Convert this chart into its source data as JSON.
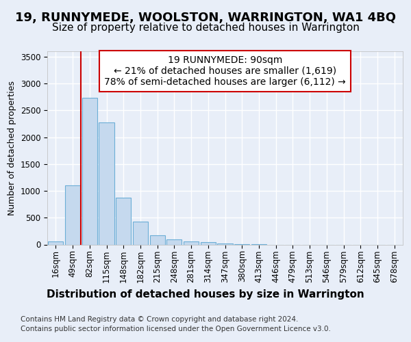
{
  "title": "19, RUNNYMEDE, WOOLSTON, WARRINGTON, WA1 4BQ",
  "subtitle": "Size of property relative to detached houses in Warrington",
  "xlabel": "Distribution of detached houses by size in Warrington",
  "ylabel": "Number of detached properties",
  "footer_line1": "Contains HM Land Registry data © Crown copyright and database right 2024.",
  "footer_line2": "Contains public sector information licensed under the Open Government Licence v3.0.",
  "annotation_line1": "19 RUNNYMEDE: 90sqm",
  "annotation_line2": "← 21% of detached houses are smaller (1,619)",
  "annotation_line3": "78% of semi-detached houses are larger (6,112) →",
  "bar_labels": [
    "16sqm",
    "49sqm",
    "82sqm",
    "115sqm",
    "148sqm",
    "182sqm",
    "215sqm",
    "248sqm",
    "281sqm",
    "314sqm",
    "347sqm",
    "380sqm",
    "413sqm",
    "446sqm",
    "479sqm",
    "513sqm",
    "546sqm",
    "579sqm",
    "612sqm",
    "645sqm",
    "678sqm"
  ],
  "bar_values": [
    55,
    1100,
    2730,
    2270,
    870,
    425,
    175,
    90,
    55,
    40,
    25,
    5,
    5,
    0,
    0,
    0,
    0,
    0,
    0,
    0,
    0
  ],
  "bar_color": "#c5d9ee",
  "bar_edge_color": "#6baed6",
  "red_line_index": 2,
  "red_line_color": "#cc0000",
  "annotation_box_color": "#cc0000",
  "ylim": [
    0,
    3600
  ],
  "yticks": [
    0,
    500,
    1000,
    1500,
    2000,
    2500,
    3000,
    3500
  ],
  "bg_color": "#e8eef8",
  "plot_bg_color": "#e8eef8",
  "grid_color": "#ffffff",
  "title_fontsize": 13,
  "subtitle_fontsize": 11,
  "xlabel_fontsize": 11,
  "ylabel_fontsize": 9,
  "tick_fontsize": 8.5,
  "annotation_fontsize": 10,
  "footer_fontsize": 7.5
}
